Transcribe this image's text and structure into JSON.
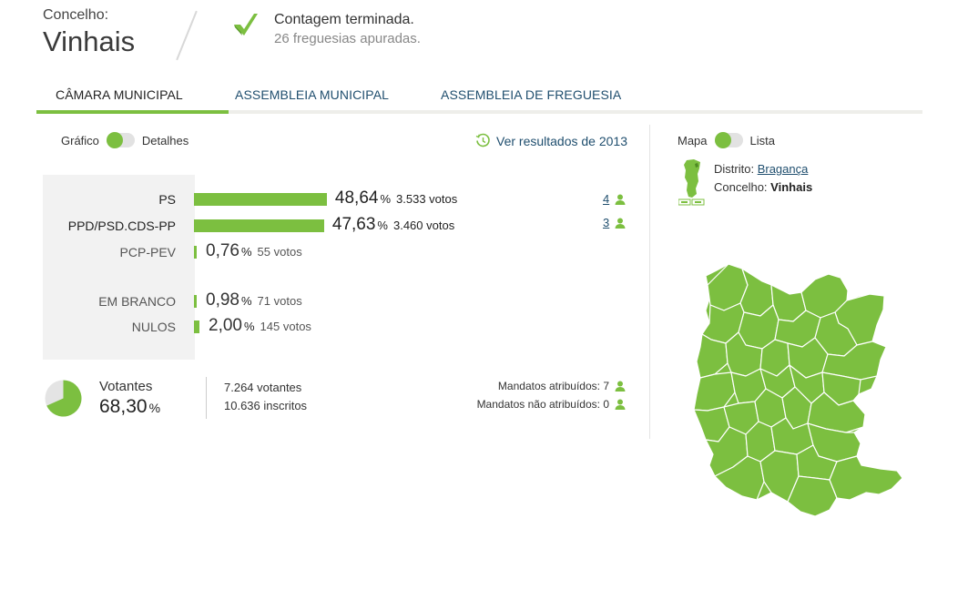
{
  "header": {
    "label": "Concelho:",
    "name": "Vinhais",
    "status_title": "Contagem terminada.",
    "status_sub": "26 freguesias apuradas."
  },
  "tabs": [
    {
      "label": "CÂMARA MUNICIPAL",
      "active": true
    },
    {
      "label": "ASSEMBLEIA MUNICIPAL",
      "active": false
    },
    {
      "label": "ASSEMBLEIA DE FREGUESIA",
      "active": false
    }
  ],
  "view_toggle": {
    "left": "Gráfico",
    "right": "Detalhes"
  },
  "history_link": "Ver resultados de 2013",
  "results": [
    {
      "party": "PS",
      "percent": "48,64",
      "share": 0.4864,
      "votes": "3.533 votos",
      "mandates": "4"
    },
    {
      "party": "PPD/PSD.CDS-PP",
      "percent": "47,63",
      "share": 0.4763,
      "votes": "3.460 votos",
      "mandates": "3"
    },
    {
      "party": "PCP-PEV",
      "percent": "0,76",
      "share": 0.0076,
      "votes": "55 votos"
    },
    {
      "party": "EM BRANCO",
      "percent": "0,98",
      "share": 0.0098,
      "votes": "71 votos"
    },
    {
      "party": "NULOS",
      "percent": "2,00",
      "share": 0.02,
      "votes": "145 votos"
    }
  ],
  "percent_symbol": "%",
  "voters": {
    "title": "Votantes",
    "value": "68,30",
    "share": 0.683,
    "votantes": "7.264 votantes",
    "inscritos": "10.636 inscritos"
  },
  "mandates_summary": {
    "attributed": "Mandatos atribuídos: 7",
    "not_attributed": "Mandatos não atribuídos: 0"
  },
  "map_toggle": {
    "left": "Mapa",
    "right": "Lista"
  },
  "location": {
    "distrito_label": "Distrito:",
    "distrito": "Bragança",
    "concelho_label": "Concelho:",
    "concelho": "Vinhais"
  },
  "colors": {
    "accent": "#7cbf40",
    "link": "#1f4e6e",
    "map_fill": "#7cbf40",
    "map_border": "#ffffff"
  },
  "icons": {
    "status": "check-icon",
    "history": "clock-history-icon",
    "mandate": "person-icon"
  }
}
